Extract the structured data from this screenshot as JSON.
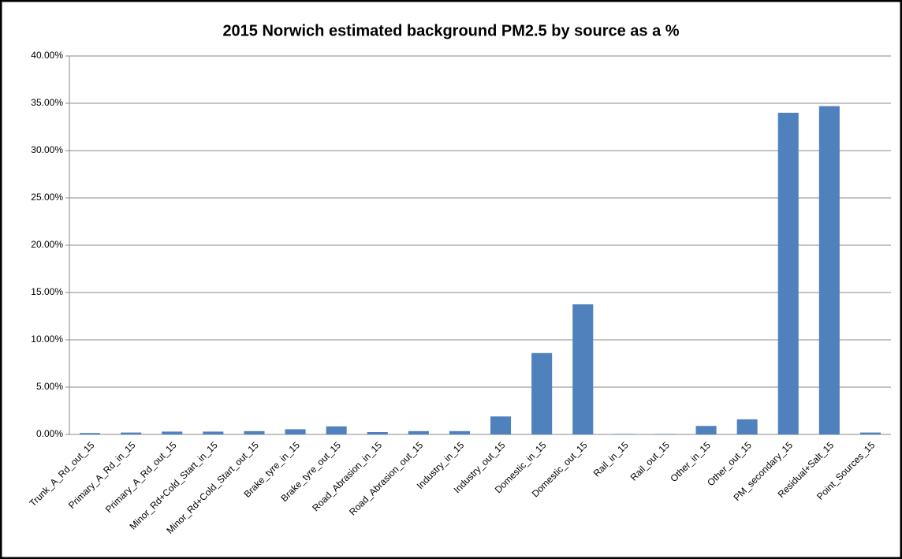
{
  "chart_data": {
    "type": "bar",
    "title": "2015 Norwich estimated background PM2.5 by source as a %",
    "categories": [
      "Trunk_A_Rd_out_15",
      "Primary_A_Rd_in_15",
      "Primary_A_Rd_out_15",
      "Minor_Rd+Cold_Start_in_15",
      "Minor_Rd+Cold_Start_out_15",
      "Brake_tyre_in_15",
      "Brake_tyre_out_15",
      "Road_Abrasion_in_15",
      "Road_Abrasion_out_15",
      "Industry_in_15",
      "Industry_out_15",
      "Domestic_in_15",
      "Domestic_out_15",
      "Rail_in_15",
      "Rail_out_15",
      "Other_in_15",
      "Other_out_15",
      "PM_secondary_15",
      "Residual+Salt_15",
      "Point_Sources_15"
    ],
    "values": [
      0.15,
      0.2,
      0.3,
      0.3,
      0.35,
      0.55,
      0.85,
      0.25,
      0.35,
      0.35,
      1.9,
      8.6,
      13.75,
      0.05,
      0.05,
      0.9,
      1.6,
      34.0,
      34.7,
      0.2
    ],
    "color": "#4f81bd",
    "ylim": [
      0,
      40
    ],
    "yticks": [
      {
        "value": 0,
        "label": "0.00%"
      },
      {
        "value": 5,
        "label": "5.00%"
      },
      {
        "value": 10,
        "label": "10.00%"
      },
      {
        "value": 15,
        "label": "15.00%"
      },
      {
        "value": 20,
        "label": "20.00%"
      },
      {
        "value": 25,
        "label": "25.00%"
      },
      {
        "value": 30,
        "label": "30.00%"
      },
      {
        "value": 35,
        "label": "35.00%"
      },
      {
        "value": 40,
        "label": "40.00%"
      }
    ],
    "grid": true
  }
}
